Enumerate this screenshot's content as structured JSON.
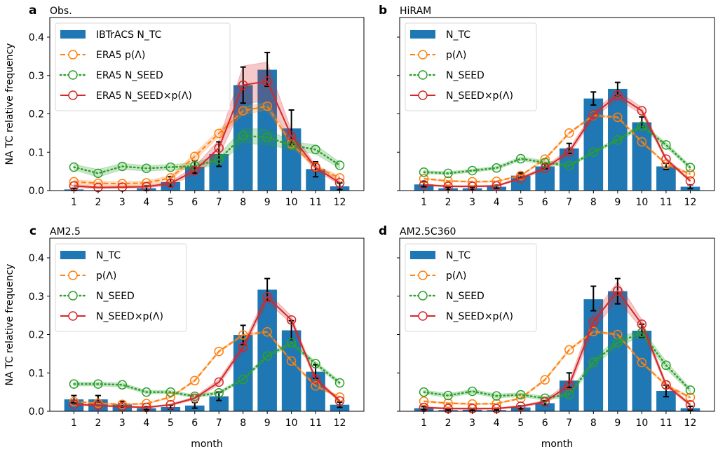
{
  "figure": {
    "ylabel": "NA TC relative frequency",
    "xlabel": "month"
  },
  "colors": {
    "bar": "#1f77b4",
    "p_lambda": "#ff7f0e",
    "n_seed": "#2ca02c",
    "product": "#d62728",
    "errorbar": "#000000"
  },
  "chart_data": [
    {
      "type": "bar",
      "panel": "a",
      "title": "Obs.",
      "xlabel": "",
      "ylabel": "NA TC relative frequency",
      "categories": [
        "1",
        "2",
        "3",
        "4",
        "5",
        "6",
        "7",
        "8",
        "9",
        "10",
        "11",
        "12"
      ],
      "ylim": [
        0,
        0.45
      ],
      "yticks": [
        "0.0",
        "0.1",
        "0.2",
        "0.3",
        "0.4"
      ],
      "show_ytick_labels": true,
      "show_xlabel": false,
      "legend": [
        "IBTrACS N_TC",
        "ERA5 p(Λ)",
        "ERA5 N_SEED",
        "ERA5 N_SEED×p(Λ)"
      ],
      "legend_position": "upper-left",
      "series": [
        {
          "name": "IBTrACS N_TC",
          "kind": "bar",
          "values": [
            0.003,
            0.0,
            0.0,
            0.006,
            0.022,
            0.062,
            0.095,
            0.275,
            0.315,
            0.162,
            0.056,
            0.011
          ],
          "err_low": [
            0.0,
            0.0,
            0.0,
            0.0,
            0.01,
            0.045,
            0.063,
            0.228,
            0.272,
            0.12,
            0.036,
            0.002
          ],
          "err_high": [
            0.006,
            0.0,
            0.0,
            0.012,
            0.036,
            0.078,
            0.127,
            0.322,
            0.36,
            0.21,
            0.075,
            0.02
          ]
        },
        {
          "name": "ERA5 p(Λ)",
          "kind": "dashed",
          "values": [
            0.023,
            0.019,
            0.018,
            0.02,
            0.033,
            0.089,
            0.149,
            0.208,
            0.22,
            0.122,
            0.062,
            0.033
          ],
          "band_low": [
            0.018,
            0.014,
            0.013,
            0.015,
            0.027,
            0.08,
            0.14,
            0.198,
            0.21,
            0.115,
            0.057,
            0.028
          ],
          "band_high": [
            0.028,
            0.024,
            0.023,
            0.025,
            0.039,
            0.097,
            0.158,
            0.218,
            0.23,
            0.129,
            0.067,
            0.038
          ]
        },
        {
          "name": "ERA5 N_SEED",
          "kind": "dotted",
          "values": [
            0.061,
            0.045,
            0.063,
            0.058,
            0.061,
            0.064,
            0.081,
            0.143,
            0.139,
            0.118,
            0.107,
            0.066
          ],
          "band_low": [
            0.054,
            0.035,
            0.055,
            0.051,
            0.054,
            0.056,
            0.068,
            0.124,
            0.118,
            0.108,
            0.095,
            0.058
          ],
          "band_high": [
            0.068,
            0.055,
            0.071,
            0.065,
            0.068,
            0.072,
            0.094,
            0.162,
            0.16,
            0.128,
            0.119,
            0.074
          ]
        },
        {
          "name": "ERA5 N_SEED×p(Λ)",
          "kind": "solid",
          "values": [
            0.012,
            0.008,
            0.009,
            0.01,
            0.019,
            0.052,
            0.111,
            0.275,
            0.285,
            0.142,
            0.06,
            0.02
          ],
          "band_low": [
            0.008,
            0.005,
            0.006,
            0.007,
            0.014,
            0.042,
            0.09,
            0.225,
            0.235,
            0.128,
            0.053,
            0.015
          ],
          "band_high": [
            0.016,
            0.011,
            0.012,
            0.013,
            0.024,
            0.062,
            0.132,
            0.325,
            0.335,
            0.156,
            0.067,
            0.025
          ]
        }
      ]
    },
    {
      "type": "bar",
      "panel": "b",
      "title": "HiRAM",
      "xlabel": "",
      "ylabel": "",
      "categories": [
        "1",
        "2",
        "3",
        "4",
        "5",
        "6",
        "7",
        "8",
        "9",
        "10",
        "11",
        "12"
      ],
      "ylim": [
        0,
        0.45
      ],
      "yticks": [
        "0.0",
        "0.1",
        "0.2",
        "0.3",
        "0.4"
      ],
      "show_ytick_labels": false,
      "show_xlabel": false,
      "legend": [
        "N_TC",
        "p(Λ)",
        "N_SEED",
        "N_SEED×p(Λ)"
      ],
      "legend_position": "upper-left",
      "series": [
        {
          "name": "N_TC",
          "kind": "bar",
          "values": [
            0.016,
            0.006,
            0.006,
            0.01,
            0.039,
            0.063,
            0.11,
            0.24,
            0.265,
            0.178,
            0.063,
            0.01
          ],
          "err_low": [
            0.01,
            0.003,
            0.003,
            0.006,
            0.032,
            0.057,
            0.097,
            0.223,
            0.247,
            0.165,
            0.055,
            0.005
          ],
          "err_high": [
            0.022,
            0.009,
            0.009,
            0.014,
            0.046,
            0.069,
            0.123,
            0.257,
            0.282,
            0.192,
            0.071,
            0.015
          ]
        },
        {
          "name": "p(Λ)",
          "kind": "dashed",
          "values": [
            0.031,
            0.025,
            0.023,
            0.024,
            0.039,
            0.082,
            0.15,
            0.196,
            0.191,
            0.127,
            0.069,
            0.043
          ],
          "band_low": [
            0.029,
            0.023,
            0.021,
            0.022,
            0.037,
            0.079,
            0.147,
            0.193,
            0.188,
            0.124,
            0.066,
            0.04
          ],
          "band_high": [
            0.033,
            0.027,
            0.025,
            0.026,
            0.041,
            0.085,
            0.153,
            0.199,
            0.194,
            0.13,
            0.072,
            0.046
          ]
        },
        {
          "name": "N_SEED",
          "kind": "dotted",
          "values": [
            0.048,
            0.045,
            0.052,
            0.059,
            0.083,
            0.073,
            0.065,
            0.1,
            0.132,
            0.168,
            0.119,
            0.06
          ],
          "band_low": [
            0.044,
            0.041,
            0.048,
            0.055,
            0.078,
            0.068,
            0.061,
            0.096,
            0.127,
            0.162,
            0.113,
            0.055
          ],
          "band_high": [
            0.052,
            0.049,
            0.056,
            0.063,
            0.088,
            0.078,
            0.069,
            0.104,
            0.137,
            0.174,
            0.125,
            0.065
          ]
        },
        {
          "name": "N_SEED×p(Λ)",
          "kind": "solid",
          "values": [
            0.015,
            0.011,
            0.011,
            0.012,
            0.032,
            0.058,
            0.101,
            0.197,
            0.249,
            0.208,
            0.082,
            0.025
          ],
          "band_low": [
            0.013,
            0.009,
            0.009,
            0.01,
            0.029,
            0.053,
            0.093,
            0.189,
            0.238,
            0.199,
            0.077,
            0.022
          ],
          "band_high": [
            0.017,
            0.013,
            0.013,
            0.014,
            0.035,
            0.063,
            0.109,
            0.205,
            0.26,
            0.217,
            0.087,
            0.028
          ]
        }
      ]
    },
    {
      "type": "bar",
      "panel": "c",
      "title": "AM2.5",
      "xlabel": "month",
      "ylabel": "NA TC relative frequency",
      "categories": [
        "1",
        "2",
        "3",
        "4",
        "5",
        "6",
        "7",
        "8",
        "9",
        "10",
        "11",
        "12"
      ],
      "ylim": [
        0,
        0.45
      ],
      "yticks": [
        "0.0",
        "0.1",
        "0.2",
        "0.3",
        "0.4"
      ],
      "show_ytick_labels": true,
      "show_xlabel": true,
      "legend": [
        "N_TC",
        "p(Λ)",
        "N_SEED",
        "N_SEED×p(Λ)"
      ],
      "legend_position": "upper-left",
      "series": [
        {
          "name": "N_TC",
          "kind": "bar",
          "values": [
            0.031,
            0.031,
            0.018,
            0.008,
            0.011,
            0.015,
            0.039,
            0.199,
            0.317,
            0.211,
            0.103,
            0.017
          ],
          "err_low": [
            0.022,
            0.022,
            0.011,
            0.004,
            0.006,
            0.008,
            0.028,
            0.174,
            0.288,
            0.187,
            0.086,
            0.01
          ],
          "err_high": [
            0.041,
            0.041,
            0.026,
            0.012,
            0.016,
            0.023,
            0.05,
            0.224,
            0.346,
            0.236,
            0.121,
            0.024
          ]
        },
        {
          "name": "p(Λ)",
          "kind": "dashed",
          "values": [
            0.025,
            0.021,
            0.018,
            0.02,
            0.037,
            0.08,
            0.156,
            0.199,
            0.207,
            0.131,
            0.066,
            0.037
          ],
          "band_low": [
            0.023,
            0.019,
            0.016,
            0.018,
            0.035,
            0.077,
            0.153,
            0.196,
            0.204,
            0.128,
            0.063,
            0.034
          ],
          "band_high": [
            0.027,
            0.023,
            0.02,
            0.022,
            0.039,
            0.083,
            0.159,
            0.202,
            0.21,
            0.134,
            0.069,
            0.04
          ]
        },
        {
          "name": "N_SEED",
          "kind": "dotted",
          "values": [
            0.071,
            0.071,
            0.069,
            0.05,
            0.05,
            0.039,
            0.048,
            0.083,
            0.144,
            0.178,
            0.124,
            0.074
          ],
          "band_low": [
            0.066,
            0.066,
            0.064,
            0.046,
            0.046,
            0.035,
            0.044,
            0.079,
            0.139,
            0.172,
            0.118,
            0.069
          ],
          "band_high": [
            0.076,
            0.076,
            0.074,
            0.054,
            0.054,
            0.043,
            0.052,
            0.087,
            0.149,
            0.184,
            0.13,
            0.079
          ]
        },
        {
          "name": "N_SEED×p(Λ)",
          "kind": "solid",
          "values": [
            0.018,
            0.015,
            0.012,
            0.01,
            0.017,
            0.034,
            0.076,
            0.167,
            0.298,
            0.238,
            0.084,
            0.027
          ],
          "band_low": [
            0.016,
            0.013,
            0.01,
            0.008,
            0.015,
            0.03,
            0.069,
            0.158,
            0.285,
            0.228,
            0.078,
            0.024
          ],
          "band_high": [
            0.02,
            0.017,
            0.014,
            0.012,
            0.019,
            0.038,
            0.083,
            0.176,
            0.311,
            0.248,
            0.09,
            0.03
          ]
        }
      ]
    },
    {
      "type": "bar",
      "panel": "d",
      "title": "AM2.5C360",
      "xlabel": "month",
      "ylabel": "",
      "categories": [
        "1",
        "2",
        "3",
        "4",
        "5",
        "6",
        "7",
        "8",
        "9",
        "10",
        "11",
        "12"
      ],
      "ylim": [
        0,
        0.45
      ],
      "yticks": [
        "0.0",
        "0.1",
        "0.2",
        "0.3",
        "0.4"
      ],
      "show_ytick_labels": false,
      "show_xlabel": true,
      "legend": [
        "N_TC",
        "p(Λ)",
        "N_SEED",
        "N_SEED×p(Λ)"
      ],
      "legend_position": "upper-left",
      "series": [
        {
          "name": "N_TC",
          "kind": "bar",
          "values": [
            0.008,
            0.003,
            0.004,
            0.003,
            0.01,
            0.021,
            0.08,
            0.292,
            0.313,
            0.21,
            0.053,
            0.008
          ],
          "err_low": [
            0.004,
            0.001,
            0.002,
            0.001,
            0.006,
            0.015,
            0.062,
            0.262,
            0.28,
            0.193,
            0.038,
            0.003
          ],
          "err_high": [
            0.012,
            0.005,
            0.006,
            0.005,
            0.014,
            0.027,
            0.1,
            0.326,
            0.346,
            0.227,
            0.068,
            0.013
          ]
        },
        {
          "name": "p(Λ)",
          "kind": "dashed",
          "values": [
            0.026,
            0.021,
            0.019,
            0.02,
            0.034,
            0.082,
            0.16,
            0.208,
            0.2,
            0.127,
            0.068,
            0.036
          ],
          "band_low": [
            0.024,
            0.019,
            0.017,
            0.018,
            0.032,
            0.079,
            0.157,
            0.205,
            0.197,
            0.124,
            0.065,
            0.033
          ],
          "band_high": [
            0.028,
            0.023,
            0.021,
            0.022,
            0.036,
            0.085,
            0.163,
            0.211,
            0.203,
            0.13,
            0.071,
            0.039
          ]
        },
        {
          "name": "N_SEED",
          "kind": "dotted",
          "values": [
            0.05,
            0.041,
            0.052,
            0.04,
            0.043,
            0.034,
            0.044,
            0.128,
            0.179,
            0.205,
            0.12,
            0.055
          ],
          "band_low": [
            0.045,
            0.036,
            0.047,
            0.035,
            0.038,
            0.029,
            0.038,
            0.118,
            0.168,
            0.196,
            0.11,
            0.05
          ],
          "band_high": [
            0.055,
            0.046,
            0.057,
            0.045,
            0.048,
            0.039,
            0.05,
            0.138,
            0.19,
            0.214,
            0.13,
            0.06
          ]
        },
        {
          "name": "N_SEED×p(Λ)",
          "kind": "solid",
          "values": [
            0.01,
            0.007,
            0.007,
            0.007,
            0.013,
            0.025,
            0.068,
            0.233,
            0.314,
            0.227,
            0.069,
            0.017
          ],
          "band_low": [
            0.008,
            0.005,
            0.005,
            0.005,
            0.011,
            0.021,
            0.058,
            0.213,
            0.29,
            0.215,
            0.063,
            0.014
          ],
          "band_high": [
            0.012,
            0.009,
            0.009,
            0.009,
            0.015,
            0.029,
            0.078,
            0.253,
            0.338,
            0.239,
            0.075,
            0.02
          ]
        }
      ]
    }
  ]
}
